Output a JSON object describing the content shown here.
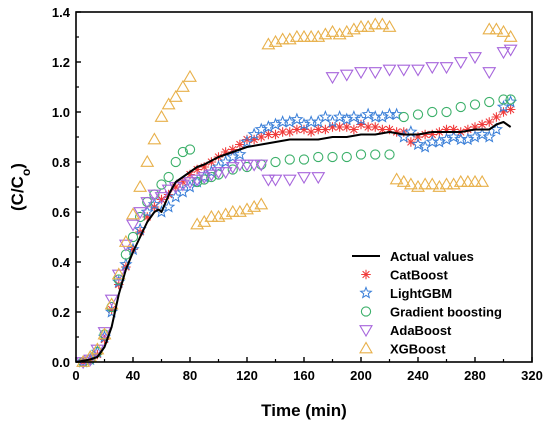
{
  "chart_data": {
    "type": "scatter",
    "xlabel": "Time (min)",
    "ylabel_main": "(C/C",
    "ylabel_sub": "o",
    "ylabel_close": ")",
    "xlim": [
      0,
      320
    ],
    "ylim": [
      0,
      1.4
    ],
    "xticks": [
      "0",
      "40",
      "80",
      "120",
      "160",
      "200",
      "240",
      "280",
      "320"
    ],
    "yticks": [
      "0.0",
      "0.2",
      "0.4",
      "0.6",
      "0.8",
      "1.0",
      "1.2",
      "1.4"
    ],
    "grid": false,
    "legend_position": "bottom-right",
    "colors": {
      "actual": "#000000",
      "catboost": "#f03c3c",
      "lightgbm": "#3a7fd8",
      "gradient": "#3cb06a",
      "adaboost": "#a766dc",
      "xgboost": "#e8b04a"
    },
    "series": [
      {
        "name": "Actual values",
        "key": "actual",
        "marker": "line",
        "x": [
          0,
          10,
          15,
          20,
          25,
          30,
          35,
          40,
          45,
          50,
          55,
          58,
          60,
          63,
          66,
          70,
          75,
          80,
          85,
          90,
          100,
          110,
          120,
          130,
          140,
          150,
          160,
          170,
          180,
          190,
          200,
          210,
          220,
          230,
          240,
          250,
          260,
          270,
          280,
          290,
          295,
          300,
          305
        ],
        "y": [
          0,
          0.01,
          0.02,
          0.06,
          0.14,
          0.27,
          0.37,
          0.44,
          0.5,
          0.56,
          0.6,
          0.61,
          0.6,
          0.64,
          0.68,
          0.72,
          0.74,
          0.76,
          0.78,
          0.79,
          0.82,
          0.84,
          0.86,
          0.87,
          0.88,
          0.89,
          0.89,
          0.89,
          0.9,
          0.9,
          0.91,
          0.91,
          0.92,
          0.91,
          0.91,
          0.92,
          0.92,
          0.92,
          0.93,
          0.93,
          0.95,
          0.96,
          0.94
        ]
      },
      {
        "name": "CatBoost",
        "key": "catboost",
        "marker": "asterisk",
        "x": [
          5,
          10,
          15,
          20,
          25,
          30,
          35,
          40,
          45,
          50,
          55,
          60,
          65,
          70,
          75,
          80,
          85,
          90,
          95,
          100,
          105,
          110,
          115,
          120,
          125,
          130,
          135,
          140,
          145,
          150,
          155,
          160,
          165,
          170,
          175,
          180,
          185,
          190,
          195,
          200,
          205,
          210,
          215,
          220,
          225,
          230,
          235,
          240,
          245,
          250,
          255,
          260,
          265,
          270,
          275,
          280,
          285,
          290,
          295,
          300,
          305
        ],
        "y": [
          0.0,
          0.01,
          0.03,
          0.09,
          0.21,
          0.31,
          0.38,
          0.45,
          0.52,
          0.58,
          0.62,
          0.65,
          0.67,
          0.7,
          0.72,
          0.75,
          0.77,
          0.78,
          0.8,
          0.82,
          0.84,
          0.85,
          0.87,
          0.89,
          0.89,
          0.9,
          0.91,
          0.91,
          0.92,
          0.92,
          0.93,
          0.93,
          0.92,
          0.93,
          0.93,
          0.94,
          0.94,
          0.94,
          0.93,
          0.95,
          0.94,
          0.94,
          0.93,
          0.93,
          0.92,
          0.92,
          0.88,
          0.9,
          0.91,
          0.91,
          0.92,
          0.93,
          0.93,
          0.92,
          0.93,
          0.94,
          0.95,
          0.96,
          0.98,
          1.0,
          1.01
        ]
      },
      {
        "name": "LightGBM",
        "key": "lightgbm",
        "marker": "star",
        "x": [
          5,
          10,
          15,
          20,
          25,
          30,
          35,
          40,
          45,
          50,
          55,
          60,
          65,
          70,
          75,
          80,
          85,
          90,
          95,
          100,
          105,
          110,
          115,
          120,
          125,
          130,
          135,
          140,
          145,
          150,
          155,
          160,
          165,
          170,
          175,
          180,
          185,
          190,
          195,
          200,
          205,
          210,
          215,
          220,
          225,
          230,
          235,
          240,
          245,
          250,
          255,
          260,
          265,
          270,
          275,
          280,
          285,
          290,
          295,
          300,
          305
        ],
        "y": [
          0.0,
          0.01,
          0.04,
          0.1,
          0.2,
          0.32,
          0.39,
          0.45,
          0.53,
          0.6,
          0.63,
          0.6,
          0.62,
          0.66,
          0.68,
          0.7,
          0.72,
          0.74,
          0.76,
          0.78,
          0.8,
          0.82,
          0.83,
          0.88,
          0.91,
          0.93,
          0.94,
          0.95,
          0.96,
          0.96,
          0.97,
          0.95,
          0.96,
          0.96,
          0.98,
          0.96,
          0.98,
          0.97,
          0.98,
          0.97,
          0.99,
          0.98,
          0.98,
          0.99,
          0.99,
          0.9,
          0.92,
          0.87,
          0.86,
          0.88,
          0.88,
          0.89,
          0.9,
          0.89,
          0.89,
          0.9,
          0.91,
          0.9,
          0.93,
          1.02,
          1.04
        ]
      },
      {
        "name": "Gradient boosting",
        "key": "gradient",
        "marker": "circle",
        "x": [
          5,
          10,
          15,
          20,
          25,
          30,
          35,
          40,
          45,
          50,
          55,
          60,
          65,
          70,
          75,
          80,
          85,
          90,
          95,
          100,
          110,
          120,
          130,
          140,
          150,
          160,
          170,
          180,
          190,
          200,
          210,
          220,
          230,
          240,
          250,
          260,
          270,
          280,
          290,
          300,
          305
        ],
        "y": [
          0.0,
          0.01,
          0.04,
          0.11,
          0.22,
          0.33,
          0.43,
          0.5,
          0.58,
          0.64,
          0.67,
          0.71,
          0.74,
          0.8,
          0.84,
          0.85,
          0.72,
          0.73,
          0.74,
          0.75,
          0.77,
          0.78,
          0.79,
          0.8,
          0.81,
          0.81,
          0.82,
          0.82,
          0.82,
          0.83,
          0.83,
          0.83,
          0.98,
          0.99,
          1.0,
          1.0,
          1.02,
          1.03,
          1.04,
          1.05,
          1.05
        ]
      },
      {
        "name": "AdaBoost",
        "key": "adaboost",
        "marker": "triangle-down",
        "x": [
          5,
          10,
          15,
          20,
          25,
          30,
          35,
          40,
          45,
          50,
          55,
          60,
          65,
          70,
          75,
          80,
          85,
          90,
          95,
          100,
          105,
          110,
          115,
          120,
          125,
          130,
          135,
          140,
          150,
          160,
          170,
          180,
          190,
          200,
          210,
          220,
          230,
          240,
          250,
          260,
          270,
          280,
          290,
          300,
          305
        ],
        "y": [
          0.0,
          0.01,
          0.05,
          0.12,
          0.25,
          0.35,
          0.47,
          0.55,
          0.6,
          0.64,
          0.67,
          0.66,
          0.69,
          0.7,
          0.71,
          0.72,
          0.73,
          0.74,
          0.75,
          0.76,
          0.76,
          0.78,
          0.79,
          0.79,
          0.79,
          0.79,
          0.73,
          0.73,
          0.73,
          0.74,
          0.74,
          1.14,
          1.15,
          1.16,
          1.16,
          1.17,
          1.17,
          1.17,
          1.18,
          1.18,
          1.2,
          1.22,
          1.16,
          1.24,
          1.25
        ]
      },
      {
        "name": "XGBoost",
        "key": "xgboost",
        "marker": "triangle-up",
        "x": [
          5,
          10,
          15,
          20,
          25,
          30,
          35,
          40,
          45,
          50,
          55,
          60,
          65,
          70,
          75,
          80,
          85,
          90,
          95,
          100,
          105,
          110,
          115,
          120,
          125,
          130,
          135,
          140,
          145,
          150,
          155,
          160,
          165,
          170,
          175,
          180,
          185,
          190,
          195,
          200,
          205,
          210,
          215,
          220,
          225,
          230,
          235,
          240,
          245,
          250,
          255,
          260,
          265,
          270,
          275,
          280,
          285,
          290,
          295,
          300,
          305
        ],
        "y": [
          0.0,
          0.02,
          0.05,
          0.11,
          0.23,
          0.35,
          0.48,
          0.59,
          0.7,
          0.8,
          0.89,
          0.98,
          1.03,
          1.06,
          1.1,
          1.14,
          0.55,
          0.56,
          0.58,
          0.58,
          0.59,
          0.6,
          0.6,
          0.61,
          0.62,
          0.63,
          1.27,
          1.28,
          1.29,
          1.29,
          1.3,
          1.3,
          1.3,
          1.3,
          1.31,
          1.32,
          1.31,
          1.32,
          1.33,
          1.34,
          1.34,
          1.35,
          1.35,
          1.34,
          0.73,
          0.72,
          0.71,
          0.7,
          0.71,
          0.71,
          0.7,
          0.71,
          0.71,
          0.72,
          0.72,
          0.72,
          0.72,
          1.33,
          1.33,
          1.32,
          1.3
        ]
      }
    ]
  }
}
